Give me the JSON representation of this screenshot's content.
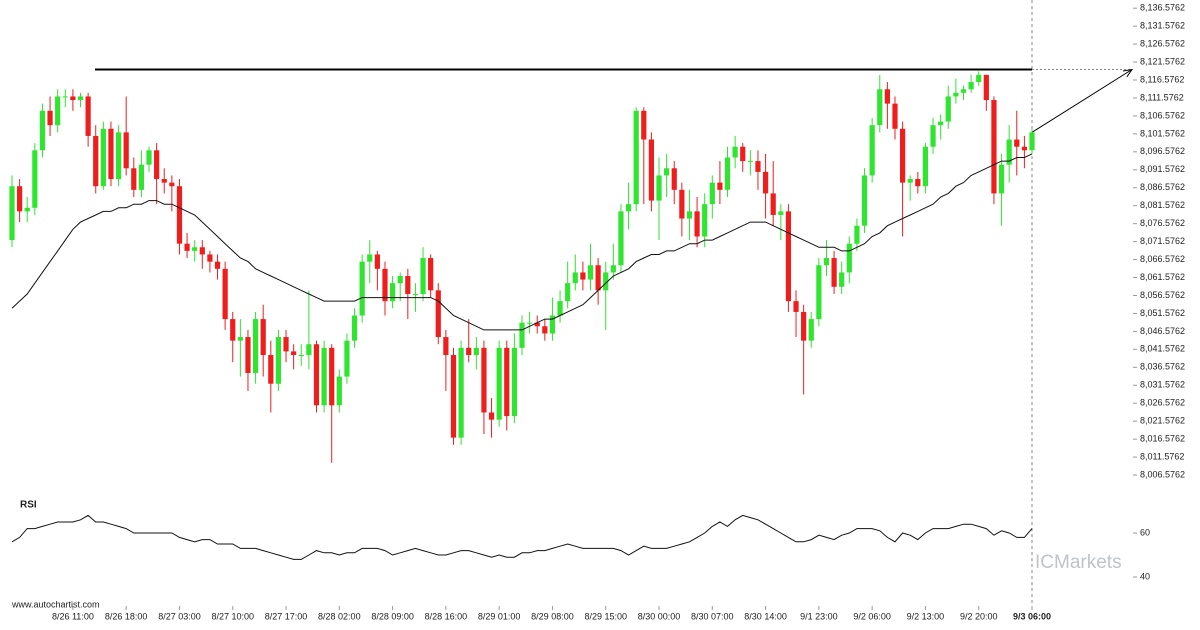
{
  "chart_data": {
    "type": "candlestick",
    "x": [
      null,
      null,
      null,
      null,
      null,
      null,
      null,
      null,
      "8/26 11:00",
      null,
      null,
      null,
      null,
      null,
      null,
      "8/26 18:00",
      null,
      null,
      null,
      null,
      null,
      null,
      "8/27 03:00",
      null,
      null,
      null,
      null,
      null,
      null,
      "8/27 10:00",
      null,
      null,
      null,
      null,
      null,
      null,
      "8/27 17:00",
      null,
      null,
      null,
      null,
      null,
      null,
      "8/28 02:00",
      null,
      null,
      null,
      null,
      null,
      null,
      "8/28 09:00",
      null,
      null,
      null,
      null,
      null,
      null,
      "8/28 16:00",
      null,
      null,
      null,
      null,
      null,
      null,
      "8/29 01:00",
      null,
      null,
      null,
      null,
      null,
      null,
      "8/29 08:00",
      null,
      null,
      null,
      null,
      null,
      null,
      "8/29 15:00",
      null,
      null,
      null,
      null,
      null,
      null,
      "8/30 00:00",
      null,
      null,
      null,
      null,
      null,
      null,
      "8/30 07:00",
      null,
      null,
      null,
      null,
      null,
      null,
      "8/30 14:00",
      null,
      null,
      null,
      null,
      null,
      null,
      "9/1 23:00",
      null,
      null,
      null,
      null,
      null,
      null,
      "9/2 06:00",
      null,
      null,
      null,
      null,
      null,
      null,
      "9/2 13:00",
      null,
      null,
      null,
      null,
      null,
      null,
      "9/2 20:00",
      null,
      null,
      null,
      null,
      null,
      null,
      "9/3 06:00"
    ],
    "open": [
      8072,
      8087,
      8080,
      8081,
      8097,
      8108,
      8104,
      8112,
      8112,
      8111,
      8112,
      8101,
      8087,
      8103,
      8089,
      8102,
      8092,
      8086,
      8093,
      8097,
      8089,
      8088,
      8087,
      8071,
      8069,
      8070,
      8068,
      8066,
      8064,
      8050,
      8044,
      8045,
      8035,
      8050,
      8040,
      8032,
      8045,
      8041,
      8040,
      8040,
      8043,
      8026,
      8042,
      8026,
      8034,
      8044,
      8051,
      8066,
      8068,
      8064,
      8055,
      8060,
      8062,
      8057,
      8057,
      8067,
      8058,
      8045,
      8040,
      8017,
      8042,
      8040,
      8042,
      8024,
      8022,
      8042,
      8023,
      8042,
      8049,
      8049,
      8048,
      8046,
      8051,
      8055,
      8060,
      8063,
      8061,
      8065,
      8058,
      8063,
      8065,
      8080,
      8082,
      8108,
      8100,
      8083,
      8090,
      8092,
      8086,
      8078,
      8080,
      8073,
      8082,
      8088,
      8086,
      8095,
      8098,
      8094,
      8094,
      8091,
      8085,
      8079,
      8080,
      8055,
      8052,
      8044,
      8050,
      8065,
      8067,
      8059,
      8063,
      8071,
      8076,
      8090,
      8104,
      8114,
      8110,
      8103,
      8088,
      8089,
      8087,
      8098,
      8104,
      8105,
      8112,
      8113,
      8114,
      8116,
      8118,
      8111,
      8085,
      8093,
      8100,
      8098,
      8097
    ],
    "high": [
      8090,
      8089,
      8084,
      8099,
      8110,
      8112,
      8114,
      8114,
      8114,
      8113,
      8113,
      8104,
      8105,
      8105,
      8104,
      8112,
      8095,
      8097,
      8098,
      8099,
      8092,
      8090,
      8089,
      8074,
      8072,
      8072,
      8069,
      8068,
      8066,
      8052,
      8050,
      8047,
      8052,
      8054,
      8044,
      8047,
      8047,
      8043,
      8043,
      8058,
      8044,
      8044,
      8043,
      8036,
      8046,
      8053,
      8068,
      8072,
      8069,
      8066,
      8062,
      8063,
      8064,
      8060,
      8070,
      8068,
      8060,
      8047,
      8042,
      8044,
      8050,
      8045,
      8044,
      8028,
      8044,
      8044,
      8046,
      8051,
      8052,
      8051,
      8050,
      8056,
      8058,
      8066,
      8068,
      8066,
      8071,
      8067,
      8066,
      8071,
      8082,
      8088,
      8109,
      8109,
      8102,
      8095,
      8096,
      8094,
      8088,
      8086,
      8084,
      8085,
      8090,
      8094,
      8098,
      8101,
      8099,
      8097,
      8097,
      8096,
      8094,
      8082,
      8082,
      8058,
      8054,
      8052,
      8067,
      8072,
      8069,
      8066,
      8073,
      8078,
      8092,
      8106,
      8118,
      8116,
      8112,
      8105,
      8090,
      8091,
      8099,
      8106,
      8107,
      8115,
      8117,
      8115,
      8118,
      8119,
      8118,
      8112,
      8096,
      8104,
      8108,
      8101,
      8103
    ],
    "low": [
      8070,
      8077,
      8077,
      8079,
      8095,
      8101,
      8102,
      8109,
      8108,
      8109,
      8098,
      8085,
      8086,
      8087,
      8087,
      8090,
      8084,
      8084,
      8091,
      8082,
      8085,
      8080,
      8068,
      8067,
      8066,
      8064,
      8063,
      8061,
      8047,
      8038,
      8034,
      8030,
      8032,
      8034,
      8024,
      8030,
      8038,
      8036,
      8037,
      8036,
      8024,
      8024,
      8010,
      8024,
      8032,
      8042,
      8049,
      8060,
      8058,
      8051,
      8053,
      8055,
      8050,
      8052,
      8055,
      8056,
      8043,
      8030,
      8015,
      8015,
      8038,
      8036,
      8018,
      8017,
      8020,
      8019,
      8021,
      8040,
      8046,
      8046,
      8044,
      8044,
      8049,
      8053,
      8058,
      8058,
      8058,
      8054,
      8047,
      8061,
      8063,
      8075,
      8080,
      8082,
      8080,
      8072,
      8084,
      8082,
      8073,
      8072,
      8070,
      8070,
      8078,
      8082,
      8084,
      8092,
      8091,
      8090,
      8086,
      8078,
      8076,
      8072,
      8052,
      8045,
      8029,
      8042,
      8048,
      8062,
      8057,
      8057,
      8060,
      8069,
      8074,
      8088,
      8102,
      8103,
      8100,
      8073,
      8083,
      8085,
      8085,
      8096,
      8100,
      8103,
      8110,
      8111,
      8113,
      8115,
      8108,
      8082,
      8076,
      8088,
      8090,
      8092,
      8096
    ],
    "close": [
      8087,
      8080,
      8081,
      8097,
      8108,
      8104,
      8112,
      8112,
      8111,
      8112,
      8101,
      8087,
      8103,
      8089,
      8102,
      8092,
      8086,
      8093,
      8097,
      8089,
      8088,
      8087,
      8071,
      8069,
      8070,
      8068,
      8066,
      8064,
      8050,
      8044,
      8045,
      8035,
      8050,
      8040,
      8032,
      8045,
      8041,
      8040,
      8040,
      8043,
      8026,
      8042,
      8026,
      8034,
      8044,
      8051,
      8066,
      8068,
      8064,
      8055,
      8060,
      8062,
      8057,
      8057,
      8067,
      8058,
      8045,
      8040,
      8017,
      8042,
      8040,
      8042,
      8024,
      8022,
      8042,
      8023,
      8042,
      8049,
      8049,
      8048,
      8046,
      8051,
      8055,
      8060,
      8063,
      8061,
      8065,
      8058,
      8063,
      8065,
      8080,
      8082,
      8108,
      8100,
      8083,
      8090,
      8092,
      8086,
      8078,
      8080,
      8073,
      8082,
      8088,
      8086,
      8095,
      8098,
      8094,
      8094,
      8091,
      8085,
      8079,
      8080,
      8055,
      8052,
      8044,
      8050,
      8065,
      8067,
      8059,
      8063,
      8071,
      8076,
      8090,
      8104,
      8114,
      8110,
      8103,
      8088,
      8089,
      8087,
      8098,
      8104,
      8105,
      8112,
      8113,
      8114,
      8116,
      8118,
      8111,
      8085,
      8093,
      8100,
      8098,
      8097,
      8102
    ],
    "ma": [
      8053,
      8055,
      8057,
      8060,
      8063,
      8066,
      8069,
      8072,
      8075,
      8077,
      8078,
      8079,
      8080,
      8080,
      8081,
      8081,
      8082,
      8082,
      8083,
      8083,
      8082,
      8082,
      8081,
      8080,
      8079,
      8077,
      8075,
      8073,
      8071,
      8069,
      8067,
      8066,
      8064,
      8063,
      8062,
      8061,
      8060,
      8059,
      8058,
      8057,
      8056,
      8055,
      8055,
      8055,
      8055,
      8055,
      8056,
      8056,
      8056,
      8056,
      8056,
      8056,
      8056,
      8056,
      8056,
      8056,
      8055,
      8053,
      8051,
      8050,
      8049,
      8048,
      8047,
      8047,
      8047,
      8047,
      8047,
      8047,
      8048,
      8049,
      8050,
      8050,
      8051,
      8052,
      8053,
      8054,
      8056,
      8058,
      8060,
      8062,
      8063,
      8064,
      8066,
      8067,
      8068,
      8068,
      8069,
      8069,
      8070,
      8071,
      8071,
      8072,
      8072,
      8073,
      8074,
      8075,
      8076,
      8077,
      8077,
      8077,
      8076,
      8075,
      8074,
      8073,
      8072,
      8071,
      8070,
      8070,
      8070,
      8069,
      8069,
      8070,
      8071,
      8073,
      8074,
      8076,
      8077,
      8078,
      8079,
      8080,
      8081,
      8082,
      8084,
      8085,
      8087,
      8088,
      8090,
      8091,
      8092,
      8093,
      8094,
      8094,
      8095,
      8095,
      8096
    ],
    "rsi": [
      56,
      58,
      62,
      62,
      63,
      64,
      65,
      65,
      65,
      66,
      68,
      65,
      65,
      64,
      63,
      62,
      60,
      60,
      60,
      60,
      60,
      60,
      58,
      57,
      56,
      57,
      57,
      55,
      55,
      55,
      53,
      53,
      53,
      52,
      51,
      50,
      49,
      48,
      48,
      50,
      52,
      51,
      51,
      50,
      51,
      51,
      53,
      53,
      53,
      52,
      50,
      51,
      52,
      53,
      52,
      51,
      50,
      50,
      51,
      52,
      52,
      51,
      50,
      49,
      50,
      49,
      49,
      51,
      51,
      52,
      52,
      53,
      54,
      55,
      54,
      53,
      53,
      53,
      53,
      53,
      52,
      50,
      52,
      54,
      53,
      53,
      53,
      54,
      55,
      56,
      58,
      60,
      63,
      65,
      63,
      66,
      68,
      67,
      66,
      64,
      62,
      60,
      58,
      56,
      56,
      57,
      59,
      58,
      57,
      59,
      60,
      62,
      62,
      62,
      61,
      58,
      56,
      60,
      59,
      57,
      60,
      62,
      62,
      62,
      63,
      64,
      64,
      63,
      62,
      59,
      61,
      60,
      58,
      58,
      62
    ],
    "up_color": "#2fe52f",
    "down_color": "#f01d1d",
    "ma_color": "#111111",
    "rsi_color": "#111111",
    "resistance": 8119.5,
    "ylim": [
      8001.5762,
      8138.5762
    ],
    "yticks": [
      {
        "value": 8006.5762,
        "label": "8,006.5762"
      },
      {
        "value": 8011.5762,
        "label": "8,011.5762"
      },
      {
        "value": 8016.5762,
        "label": "8,016.5762"
      },
      {
        "value": 8021.5762,
        "label": "8,021.5762"
      },
      {
        "value": 8026.5762,
        "label": "8,026.5762"
      },
      {
        "value": 8031.5762,
        "label": "8,031.5762"
      },
      {
        "value": 8036.5762,
        "label": "8,036.5762"
      },
      {
        "value": 8041.5762,
        "label": "8,041.5762"
      },
      {
        "value": 8046.5762,
        "label": "8,046.5762"
      },
      {
        "value": 8051.5762,
        "label": "8,051.5762"
      },
      {
        "value": 8056.5762,
        "label": "8,056.5762"
      },
      {
        "value": 8061.5762,
        "label": "8,061.5762"
      },
      {
        "value": 8066.5762,
        "label": "8,066.5762"
      },
      {
        "value": 8071.5762,
        "label": "8,071.5762"
      },
      {
        "value": 8076.5762,
        "label": "8,076.5762"
      },
      {
        "value": 8081.5762,
        "label": "8,081.5762"
      },
      {
        "value": 8086.5762,
        "label": "8,086.5762"
      },
      {
        "value": 8091.5762,
        "label": "8,091.5762"
      },
      {
        "value": 8096.5762,
        "label": "8,096.5762"
      },
      {
        "value": 8101.5762,
        "label": "8,101.5762"
      },
      {
        "value": 8106.5762,
        "label": "8,106.5762"
      },
      {
        "value": 8111.5762,
        "label": "8,111.5762"
      },
      {
        "value": 8116.5762,
        "label": "8,116.5762"
      },
      {
        "value": 8121.5762,
        "label": "8,121.5762"
      },
      {
        "value": 8126.5762,
        "label": "8,126.5762"
      },
      {
        "value": 8131.5762,
        "label": "8,131.5762"
      },
      {
        "value": 8136.5762,
        "label": "8,136.5762"
      }
    ],
    "rsi_ylim": [
      30,
      80
    ],
    "rsi_yticks": [
      40,
      60
    ],
    "rsi_label": "RSI",
    "source": "www.autochartist.com",
    "watermark": "ICMarkets"
  }
}
